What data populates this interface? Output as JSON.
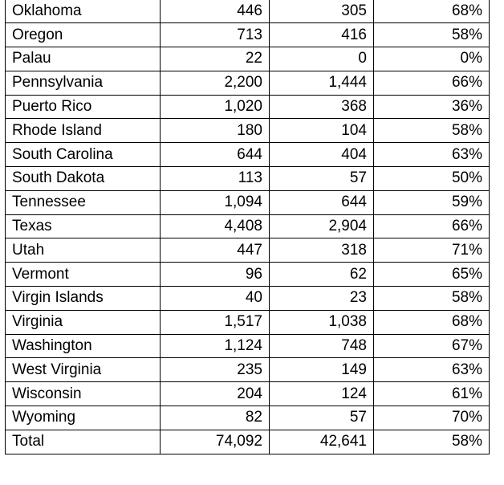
{
  "table": {
    "rows": [
      [
        "Oklahoma",
        "446",
        "305",
        "68%"
      ],
      [
        "Oregon",
        "713",
        "416",
        "58%"
      ],
      [
        "Palau",
        "22",
        "0",
        "0%"
      ],
      [
        "Pennsylvania",
        "2,200",
        "1,444",
        "66%"
      ],
      [
        "Puerto Rico",
        "1,020",
        "368",
        "36%"
      ],
      [
        "Rhode Island",
        "180",
        "104",
        "58%"
      ],
      [
        "South Carolina",
        "644",
        "404",
        "63%"
      ],
      [
        "South Dakota",
        "113",
        "57",
        "50%"
      ],
      [
        "Tennessee",
        "1,094",
        "644",
        "59%"
      ],
      [
        "Texas",
        "4,408",
        "2,904",
        "66%"
      ],
      [
        "Utah",
        "447",
        "318",
        "71%"
      ],
      [
        "Vermont",
        "96",
        "62",
        "65%"
      ],
      [
        "Virgin Islands",
        "40",
        "23",
        "58%"
      ],
      [
        "Virginia",
        "1,517",
        "1,038",
        "68%"
      ],
      [
        "Washington",
        "1,124",
        "748",
        "67%"
      ],
      [
        "West Virginia",
        "235",
        "149",
        "63%"
      ],
      [
        "Wisconsin",
        "204",
        "124",
        "61%"
      ],
      [
        "Wyoming",
        "82",
        "57",
        "70%"
      ],
      [
        "Total",
        "74,092",
        "42,641",
        "58%"
      ]
    ]
  }
}
